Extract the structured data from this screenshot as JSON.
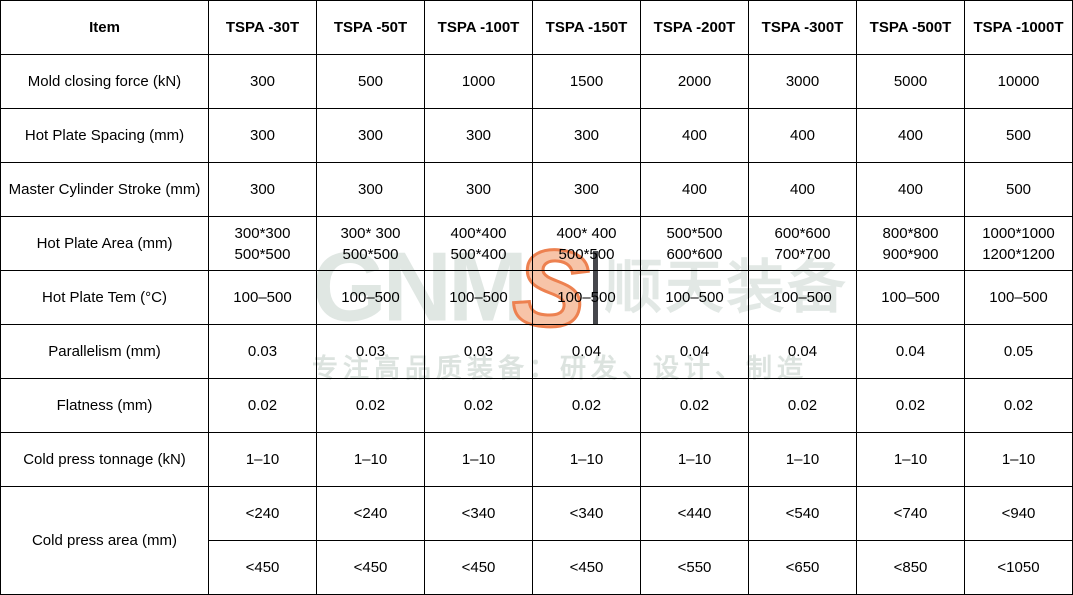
{
  "table": {
    "columns": [
      "Item",
      "TSPA -30T",
      "TSPA -50T",
      "TSPA -100T",
      "TSPA -150T",
      "TSPA -200T",
      "TSPA -300T",
      "TSPA -500T",
      "TSPA -1000T"
    ],
    "rows": [
      {
        "label": "Mold closing force (kN)",
        "values": [
          "300",
          "500",
          "1000",
          "1500",
          "2000",
          "3000",
          "5000",
          "10000"
        ]
      },
      {
        "label": "Hot Plate Spacing (mm)",
        "values": [
          "300",
          "300",
          "300",
          "300",
          "400",
          "400",
          "400",
          "500"
        ]
      },
      {
        "label": "Master Cylinder Stroke (mm)",
        "values": [
          "300",
          "300",
          "300",
          "300",
          "400",
          "400",
          "400",
          "500"
        ]
      },
      {
        "label": "Hot Plate Area (mm)",
        "values": [
          "300*300\n500*500",
          "300* 300\n500*500",
          "400*400\n500*400",
          "400* 400\n500*500",
          "500*500\n600*600",
          "600*600\n700*700",
          "800*800\n900*900",
          "1000*1000\n1200*1200"
        ]
      },
      {
        "label": "Hot Plate Tem (°C)",
        "values": [
          "100–500",
          "100–500",
          "100–500",
          "100–500",
          "100–500",
          "100–500",
          "100–500",
          "100–500"
        ]
      },
      {
        "label": "Parallelism (mm)",
        "values": [
          "0.03",
          "0.03",
          "0.03",
          "0.04",
          "0.04",
          "0.04",
          "0.04",
          "0.05"
        ]
      },
      {
        "label": "Flatness (mm)",
        "values": [
          "0.02",
          "0.02",
          "0.02",
          "0.02",
          "0.02",
          "0.02",
          "0.02",
          "0.02"
        ]
      },
      {
        "label": "Cold press tonnage (kN)",
        "values": [
          "1–10",
          "1–10",
          "1–10",
          "1–10",
          "1–10",
          "1–10",
          "1–10",
          "1–10"
        ]
      }
    ],
    "cold_press_area": {
      "label": "Cold press area (mm)",
      "top": [
        "<240",
        "<240",
        "<340",
        "<340",
        "<440",
        "<540",
        "<740",
        "<940"
      ],
      "bottom": [
        "<450",
        "<450",
        "<450",
        "<450",
        "<550",
        "<650",
        "<850",
        "<1050"
      ]
    }
  },
  "watermark": {
    "logo_letters": "GNM",
    "logo_s": "S",
    "logo_cn": "顺天装备",
    "tagline": "专注高品质装备：研发、设计、制造",
    "colors": {
      "letters_gray": "#e0e7e3",
      "s_fill": "#f7c4a8",
      "s_stroke": "#ed8150",
      "divider_bar": "#46474c",
      "tagline_gray": "#dce3df"
    }
  }
}
